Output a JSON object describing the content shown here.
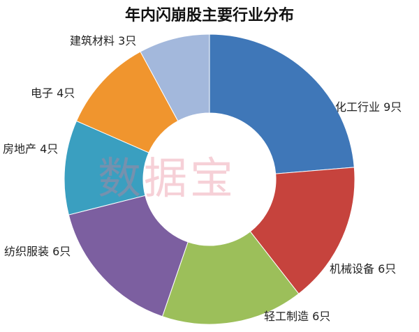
{
  "chart_data": {
    "type": "pie",
    "donut": true,
    "title": "年内闪崩股主要行业分布",
    "watermark": "数据宝",
    "start_angle": "12 o'clock, clockwise",
    "slices": [
      {
        "label": "化工行业 9只",
        "category": "化工行业",
        "value": 9,
        "color": "#3f77b8"
      },
      {
        "label": "机械设备 6只",
        "category": "机械设备",
        "value": 6,
        "color": "#c6433d"
      },
      {
        "label": "轻工制造 6只",
        "category": "轻工制造",
        "value": 6,
        "color": "#9cbf5a"
      },
      {
        "label": "纺织服装 6只",
        "category": "纺织服装",
        "value": 6,
        "color": "#7c5fa0"
      },
      {
        "label": "房地产 4只",
        "category": "房地产",
        "value": 4,
        "color": "#3a9fc0"
      },
      {
        "label": "电子 4只",
        "category": "电子",
        "value": 4,
        "color": "#f0952e"
      },
      {
        "label": "建筑材料 3只",
        "category": "建筑材料",
        "value": 3,
        "color": "#a3b8dc"
      }
    ]
  }
}
